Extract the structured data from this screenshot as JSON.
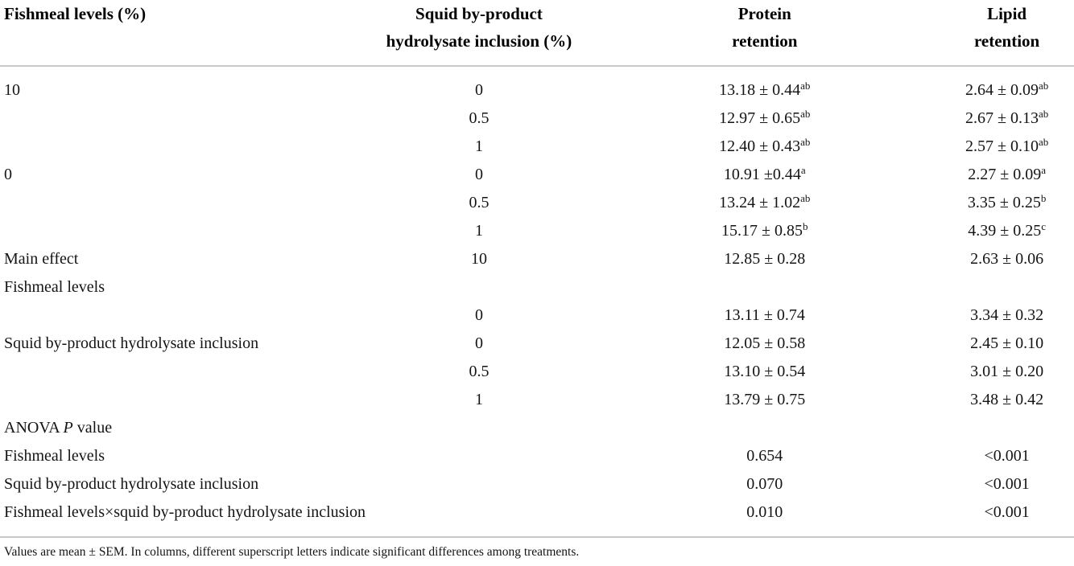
{
  "table": {
    "header": {
      "col1": {
        "line1": "Fishmeal levels (%)",
        "line2": ""
      },
      "col2": {
        "line1": "Squid by-product",
        "line2": "hydrolysate inclusion (%)"
      },
      "col3": {
        "line1": "Protein",
        "line2": "retention"
      },
      "col4": {
        "line1": "Lipid",
        "line2": "retention"
      }
    },
    "rows": [
      {
        "label": "10",
        "label_italic": "",
        "label_suffix": "",
        "inclusion": "0",
        "protein": "13.18 ± 0.44",
        "protein_sup": "ab",
        "lipid": "2.64 ± 0.09",
        "lipid_sup": "ab"
      },
      {
        "label": "",
        "label_italic": "",
        "label_suffix": "",
        "inclusion": "0.5",
        "protein": "12.97 ± 0.65",
        "protein_sup": "ab",
        "lipid": "2.67 ± 0.13",
        "lipid_sup": "ab"
      },
      {
        "label": "",
        "label_italic": "",
        "label_suffix": "",
        "inclusion": "1",
        "protein": "12.40 ± 0.43",
        "protein_sup": "ab",
        "lipid": "2.57 ± 0.10",
        "lipid_sup": "ab"
      },
      {
        "label": "0",
        "label_italic": "",
        "label_suffix": "",
        "inclusion": "0",
        "protein": "10.91 ±0.44",
        "protein_sup": "a",
        "lipid": "2.27 ± 0.09",
        "lipid_sup": "a"
      },
      {
        "label": "",
        "label_italic": "",
        "label_suffix": "",
        "inclusion": "0.5",
        "protein": "13.24 ± 1.02",
        "protein_sup": "ab",
        "lipid": "3.35 ± 0.25",
        "lipid_sup": "b"
      },
      {
        "label": "",
        "label_italic": "",
        "label_suffix": "",
        "inclusion": "1",
        "protein": "15.17 ± 0.85",
        "protein_sup": "b",
        "lipid": "4.39 ± 0.25",
        "lipid_sup": "c"
      },
      {
        "label": "Main effect",
        "label_italic": "",
        "label_suffix": "",
        "inclusion": "10",
        "protein": "12.85 ± 0.28",
        "protein_sup": "",
        "lipid": "2.63 ± 0.06",
        "lipid_sup": ""
      },
      {
        "label": "Fishmeal levels",
        "label_italic": "",
        "label_suffix": "",
        "inclusion": "",
        "protein": "",
        "protein_sup": "",
        "lipid": "",
        "lipid_sup": ""
      },
      {
        "label": "",
        "label_italic": "",
        "label_suffix": "",
        "inclusion": "0",
        "protein": "13.11 ± 0.74",
        "protein_sup": "",
        "lipid": "3.34 ± 0.32",
        "lipid_sup": ""
      },
      {
        "label": "Squid by-product hydrolysate inclusion",
        "label_italic": "",
        "label_suffix": "",
        "inclusion": "0",
        "protein": "12.05 ± 0.58",
        "protein_sup": "",
        "lipid": "2.45 ± 0.10",
        "lipid_sup": ""
      },
      {
        "label": "",
        "label_italic": "",
        "label_suffix": "",
        "inclusion": "0.5",
        "protein": "13.10 ± 0.54",
        "protein_sup": "",
        "lipid": "3.01 ± 0.20",
        "lipid_sup": ""
      },
      {
        "label": "",
        "label_italic": "",
        "label_suffix": "",
        "inclusion": "1",
        "protein": "13.79 ± 0.75",
        "protein_sup": "",
        "lipid": "3.48 ± 0.42",
        "lipid_sup": ""
      },
      {
        "label": "ANOVA ",
        "label_italic": "P",
        "label_suffix": " value",
        "inclusion": "",
        "protein": "",
        "protein_sup": "",
        "lipid": "",
        "lipid_sup": ""
      },
      {
        "label": "Fishmeal levels",
        "label_italic": "",
        "label_suffix": "",
        "inclusion": "",
        "protein": "0.654",
        "protein_sup": "",
        "lipid": "<0.001",
        "lipid_sup": ""
      },
      {
        "label": "Squid by-product hydrolysate inclusion",
        "label_italic": "",
        "label_suffix": "",
        "inclusion": "",
        "protein": "0.070",
        "protein_sup": "",
        "lipid": "<0.001",
        "lipid_sup": ""
      },
      {
        "label": "Fishmeal levels×squid by-product hydrolysate inclusion",
        "label_italic": "",
        "label_suffix": "",
        "inclusion": "",
        "protein": "0.010",
        "protein_sup": "",
        "lipid": "<0.001",
        "lipid_sup": ""
      }
    ]
  },
  "footnote": "Values are mean ± SEM. In columns, different superscript letters indicate significant differences among treatments.",
  "colors": {
    "rule": "#c9c9c9",
    "text": "#141414"
  }
}
